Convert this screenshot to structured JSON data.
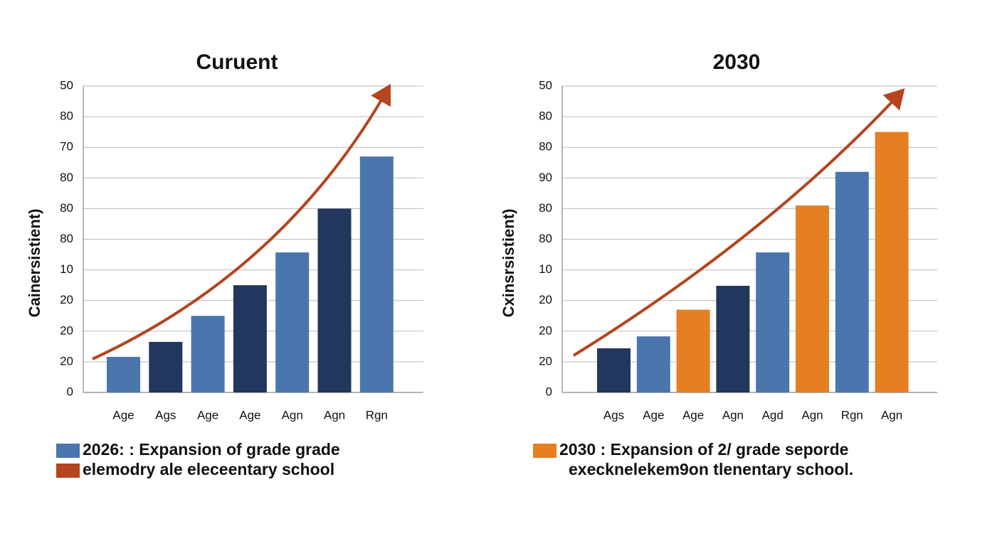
{
  "chart_data": [
    {
      "type": "bar",
      "title": "Curuent",
      "y_label": "Cainersistient)",
      "categories": [
        "Age",
        "Ags",
        "Age",
        "Age",
        "Agn",
        "Agn",
        "Rgn"
      ],
      "values": [
        11.6,
        16.5,
        25,
        35,
        45.7,
        60,
        77
      ],
      "colors": [
        "#4a76ad",
        "#22375e",
        "#4a76ad",
        "#22375e",
        "#4a76ad",
        "#22375e",
        "#4a76ad"
      ],
      "ylim": [
        0,
        100
      ],
      "yticks": [
        0,
        {
          "value": 10,
          "label": "20"
        },
        20,
        {
          "value": 30,
          "label": "20"
        },
        {
          "value": 40,
          "label": "10"
        },
        {
          "value": 50,
          "label": "80"
        },
        {
          "value": 60,
          "label": "80"
        },
        {
          "value": 70,
          "label": "80"
        },
        {
          "value": 80,
          "label": "70"
        },
        {
          "value": 90,
          "label": "80"
        },
        {
          "value": 100,
          "label": "50"
        }
      ],
      "grid": true,
      "legend": [
        {
          "label": "2026:  :  Expansion of grade grade",
          "color": "#4a76ad"
        },
        {
          "label": "elemodry ale eleceentary  school",
          "color": "#b5441f"
        }
      ]
    },
    {
      "type": "bar",
      "title": "2030",
      "y_label": "Cxinsrsistient)",
      "categories": [
        "Ags",
        "Age",
        "Age",
        "Agn",
        "Agd",
        "Agn",
        "Rgn",
        "Agn"
      ],
      "values": [
        14.4,
        18.3,
        27,
        34.8,
        45.7,
        61,
        72,
        85
      ],
      "colors": [
        "#22375e",
        "#4a76ad",
        "#e67e22",
        "#22375e",
        "#4a76ad",
        "#e67e22",
        "#4a76ad",
        "#e67e22"
      ],
      "ylim": [
        0,
        100
      ],
      "yticks": [
        0,
        {
          "value": 10,
          "label": "20"
        },
        20,
        {
          "value": 30,
          "label": "20"
        },
        {
          "value": 40,
          "label": "10"
        },
        {
          "value": 50,
          "label": "80"
        },
        {
          "value": 60,
          "label": "80"
        },
        {
          "value": 70,
          "label": "90"
        },
        {
          "value": 80,
          "label": "80"
        },
        {
          "value": 90,
          "label": "80"
        },
        {
          "value": 100,
          "label": "50"
        }
      ],
      "grid": true,
      "legend": [
        {
          "label": "2030  :   Expansion of 2/ grade seporde",
          "color": "#e67e22"
        },
        {
          "label": "execknelekem9on tlenentary school."
        }
      ]
    }
  ]
}
